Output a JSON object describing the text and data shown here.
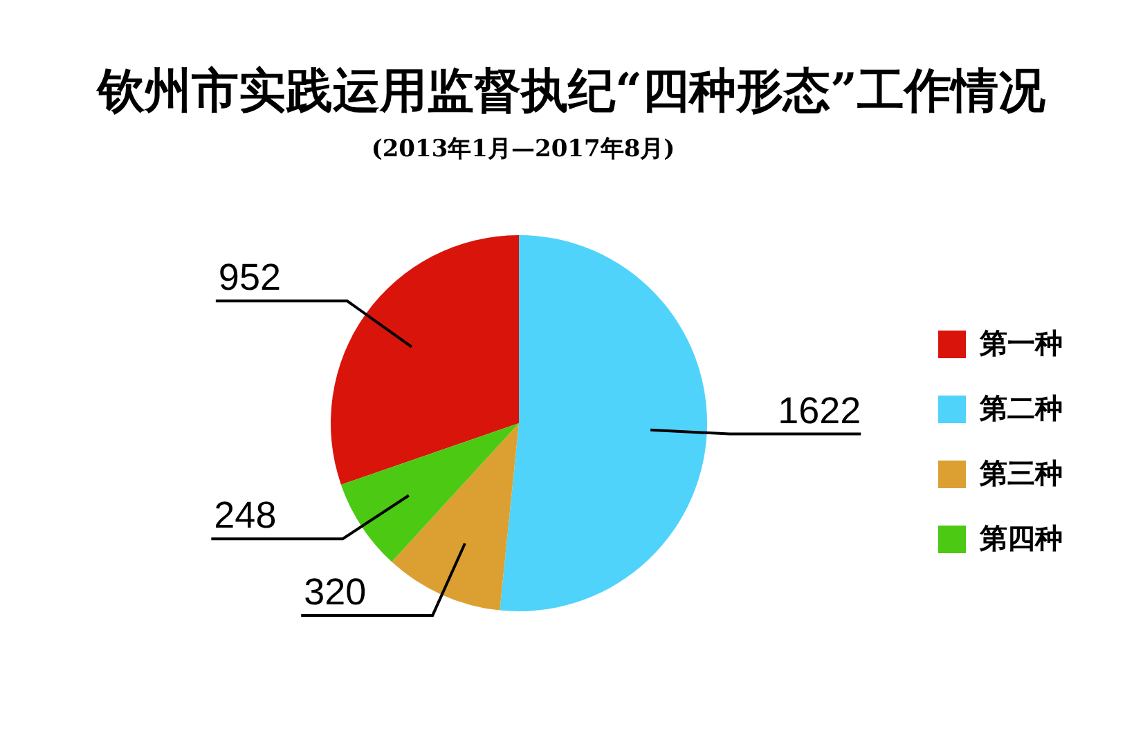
{
  "chart_data": {
    "type": "pie",
    "title": "钦州市实践运用监督执纪“四种形态”工作情况",
    "subtitle": "(2013年1月—2017年8月)",
    "categories": [
      "第一种",
      "第二种",
      "第三种",
      "第四种"
    ],
    "values": [
      952,
      1622,
      320,
      248
    ],
    "colors": [
      "#d9140a",
      "#4fd3fb",
      "#dba031",
      "#4cc913"
    ],
    "data_labels": true,
    "legend": "right"
  }
}
